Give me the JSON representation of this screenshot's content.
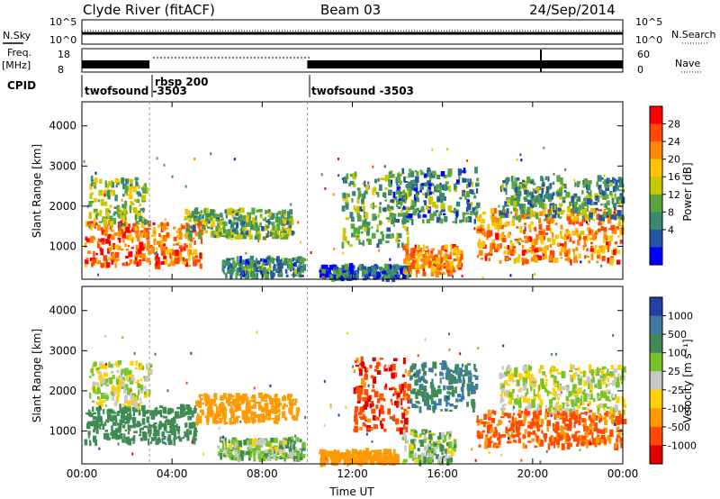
{
  "header": {
    "radar": "Clyde River (fitACF)",
    "beam": "Beam 03",
    "date": "24/Sep/2014"
  },
  "top_panels": {
    "nsky_label": "N.Sky",
    "nsky_ticks": [
      "10^5",
      "10^0"
    ],
    "nsearch_label": "N.Search",
    "nsearch_ticks": [
      "10^5",
      "10^0"
    ],
    "freq_label": "Freq.",
    "freq_unit": "[MHz]",
    "freq_ticks": [
      "18",
      "8"
    ],
    "nave_label": "Nave",
    "nave_ticks": [
      "60",
      "0"
    ],
    "cpid_label": "CPID",
    "cpid_segments": [
      {
        "name": "twofsound -3503",
        "start": 0.0,
        "end": 3.0
      },
      {
        "name": "rbsp 200",
        "start": 3.0,
        "end": 10.0
      },
      {
        "name": "twofsound -3503",
        "start": 10.0,
        "end": 24.0
      }
    ]
  },
  "colorbars": {
    "power": {
      "label": "Power [dB]",
      "ticks": [
        "28",
        "24",
        "20",
        "16",
        "12",
        "8",
        "4"
      ],
      "colors": [
        "#ff0000",
        "#ff4a00",
        "#ff8a00",
        "#ffc400",
        "#c9c800",
        "#5aa63d",
        "#3b8a70",
        "#2456a6",
        "#0000ff"
      ]
    },
    "velocity": {
      "label": "Velocity [m s⁻¹]",
      "ticks": [
        "1000",
        "500",
        "100",
        "25",
        "-25",
        "-100",
        "-500",
        "-1000"
      ],
      "colors": [
        "#2440a8",
        "#3c7aa0",
        "#3f8a55",
        "#78c22a",
        "#c8c8c8",
        "#ffd100",
        "#ff9a00",
        "#ff4a00",
        "#e00000"
      ]
    }
  },
  "chart_data": [
    {
      "type": "heatmap",
      "panel": "power",
      "title": "",
      "xlabel": "",
      "ylabel": "Slant Range [km]",
      "ylim": [
        180,
        4600
      ],
      "yticks": [
        1000,
        2000,
        3000,
        4000
      ],
      "xlim": [
        0,
        24
      ],
      "xticks": [
        0,
        4,
        8,
        12,
        16,
        20,
        24
      ],
      "colorbar": "power",
      "clim_dB": [
        0,
        32
      ],
      "regions": [
        {
          "t0": 0.1,
          "t1": 5.3,
          "r0": 500,
          "r1": 1600,
          "value": 26
        },
        {
          "t0": 0.3,
          "t1": 2.8,
          "r0": 1500,
          "r1": 2700,
          "value": 14
        },
        {
          "t0": 4.5,
          "t1": 9.3,
          "r0": 1200,
          "r1": 1900,
          "value": 12
        },
        {
          "t0": 6.2,
          "t1": 9.8,
          "r0": 250,
          "r1": 700,
          "value": 8
        },
        {
          "t0": 10.5,
          "t1": 14.5,
          "r0": 180,
          "r1": 500,
          "value": 6
        },
        {
          "t0": 11.5,
          "t1": 14.5,
          "r0": 1000,
          "r1": 2800,
          "value": 12
        },
        {
          "t0": 14.2,
          "t1": 16.8,
          "r0": 300,
          "r1": 1000,
          "value": 24
        },
        {
          "t0": 13.5,
          "t1": 17.5,
          "r0": 1600,
          "r1": 2900,
          "value": 8
        },
        {
          "t0": 17.5,
          "t1": 24.0,
          "r0": 600,
          "r1": 1900,
          "value": 24
        },
        {
          "t0": 18.5,
          "t1": 24.0,
          "r0": 1700,
          "r1": 2700,
          "value": 10
        }
      ]
    },
    {
      "type": "heatmap",
      "panel": "velocity",
      "title": "",
      "xlabel": "Time UT",
      "ylabel": "Slant Range [km]",
      "ylim": [
        180,
        4600
      ],
      "yticks": [
        1000,
        2000,
        3000,
        4000
      ],
      "xlim": [
        0,
        24
      ],
      "xticks": [
        0,
        4,
        8,
        12,
        16,
        20,
        24
      ],
      "xticklabels": [
        "00:00",
        "04:00",
        "08:00",
        "12:00",
        "16:00",
        "20:00",
        "00:00"
      ],
      "colorbar": "velocity",
      "regions": [
        {
          "t0": 0.1,
          "t1": 5.0,
          "r0": 700,
          "r1": 1600,
          "value": 300
        },
        {
          "t0": 0.3,
          "t1": 3.0,
          "r0": 1600,
          "r1": 2700,
          "value": 0
        },
        {
          "t0": 5.0,
          "t1": 9.5,
          "r0": 1200,
          "r1": 1900,
          "value": -300
        },
        {
          "t0": 6.0,
          "t1": 9.8,
          "r0": 300,
          "r1": 800,
          "value": 60
        },
        {
          "t0": 10.5,
          "t1": 14.0,
          "r0": 180,
          "r1": 500,
          "value": -300
        },
        {
          "t0": 12.0,
          "t1": 14.5,
          "r0": 1000,
          "r1": 2800,
          "value": -800
        },
        {
          "t0": 14.5,
          "t1": 17.5,
          "r0": 1500,
          "r1": 2700,
          "value": 500
        },
        {
          "t0": 14.2,
          "t1": 16.5,
          "r0": 200,
          "r1": 1000,
          "value": 60
        },
        {
          "t0": 17.5,
          "t1": 24.0,
          "r0": 600,
          "r1": 1500,
          "value": -600
        },
        {
          "t0": 18.5,
          "t1": 24.0,
          "r0": 1500,
          "r1": 2600,
          "value": 0
        }
      ]
    }
  ]
}
